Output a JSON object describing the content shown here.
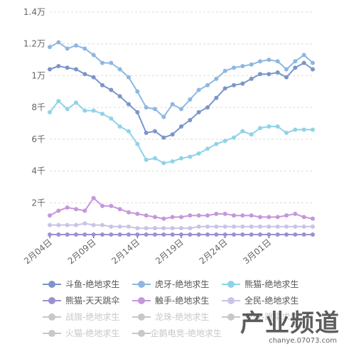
{
  "chart_data": {
    "type": "line",
    "y_tick_labels": [
      "1.4万",
      "1.2万",
      "1万",
      "8千",
      "6千",
      "4千",
      "2千"
    ],
    "y_tick_values": [
      14000,
      12000,
      10000,
      8000,
      6000,
      4000,
      2000
    ],
    "ylim": [
      0,
      14000
    ],
    "grid": true,
    "x_tick_labels": [
      "2月04日",
      "2月09日",
      "2月14日",
      "2月19日",
      "2月24日",
      "3月01日"
    ],
    "x_tick_index": [
      0,
      5,
      10,
      15,
      20,
      25
    ],
    "legend_position": "bottom",
    "series": [
      {
        "name": "斗鱼-绝地求生",
        "color": "#7b95c9",
        "visible": true,
        "values": [
          10400,
          10600,
          10500,
          10400,
          10100,
          9900,
          9400,
          9100,
          8700,
          8200,
          7700,
          6400,
          6500,
          6100,
          6300,
          6800,
          7200,
          7700,
          8000,
          8600,
          9200,
          9400,
          9500,
          9800,
          10100,
          10100,
          10200,
          9900,
          10500,
          10800,
          10400
        ]
      },
      {
        "name": "虎牙-绝地求生",
        "color": "#8db7e3",
        "visible": true,
        "values": [
          11800,
          12100,
          11700,
          11900,
          11700,
          11300,
          10800,
          10800,
          10400,
          9900,
          9000,
          8000,
          7900,
          7400,
          8200,
          7900,
          8500,
          9100,
          9400,
          9800,
          10300,
          10500,
          10600,
          10700,
          10900,
          11000,
          10900,
          10400,
          10900,
          11300,
          10800
        ]
      },
      {
        "name": "熊猫-绝地求生",
        "color": "#8fd3e8",
        "visible": true,
        "values": [
          7700,
          8400,
          7900,
          8300,
          7800,
          7800,
          7600,
          7300,
          6800,
          6500,
          5700,
          4700,
          4800,
          4500,
          4600,
          4800,
          4900,
          5100,
          5400,
          5700,
          5900,
          6100,
          6500,
          6300,
          6700,
          6800,
          6800,
          6400,
          6600,
          6600,
          6600
        ]
      },
      {
        "name": "熊猫-天天跳伞",
        "color": "#9c8fd3",
        "visible": true,
        "values": [
          0,
          0,
          0,
          0,
          0,
          0,
          0,
          0,
          0,
          0,
          0,
          0,
          0,
          0,
          0,
          0,
          0,
          0,
          0,
          0,
          0,
          0,
          0,
          0,
          0,
          0,
          0,
          0,
          0,
          0,
          0
        ]
      },
      {
        "name": "触手-绝地求生",
        "color": "#c597dc",
        "visible": true,
        "values": [
          1200,
          1500,
          1700,
          1600,
          1500,
          2300,
          1800,
          1800,
          1600,
          1400,
          1300,
          1200,
          1100,
          1000,
          1100,
          1100,
          1200,
          1200,
          1200,
          1300,
          1300,
          1200,
          1200,
          1200,
          1100,
          1100,
          1100,
          1200,
          1300,
          1100,
          1000
        ]
      },
      {
        "name": "全民-绝地求生",
        "color": "#c7c5e6",
        "visible": true,
        "values": [
          600,
          600,
          600,
          600,
          700,
          600,
          600,
          500,
          500,
          500,
          400,
          400,
          400,
          400,
          400,
          400,
          400,
          500,
          500,
          500,
          500,
          500,
          500,
          500,
          500,
          500,
          500,
          500,
          500,
          500,
          500
        ]
      },
      {
        "name": "战旗-绝地求生",
        "color": "#c8c8c8",
        "visible": false,
        "values": []
      },
      {
        "name": "龙珠-绝地求生",
        "color": "#c8c8c8",
        "visible": false,
        "values": []
      },
      {
        "name": "龙珠-跳伞求生",
        "color": "#c8c8c8",
        "visible": false,
        "values": []
      },
      {
        "name": "火猫-绝地求生",
        "color": "#c8c8c8",
        "visible": false,
        "values": []
      },
      {
        "name": "企鹅电竞-绝地求生",
        "color": "#c8c8c8",
        "visible": false,
        "values": []
      }
    ]
  },
  "legend": {
    "items": [
      {
        "label": "斗鱼-绝地求生",
        "color": "#7b95c9",
        "active": true
      },
      {
        "label": "虎牙-绝地求生",
        "color": "#8db7e3",
        "active": true
      },
      {
        "label": "熊猫-绝地求生",
        "color": "#8fd3e8",
        "active": true
      },
      {
        "label": "熊猫-天天跳伞",
        "color": "#9c8fd3",
        "active": true
      },
      {
        "label": "触手-绝地求生",
        "color": "#c597dc",
        "active": true
      },
      {
        "label": "全民-绝地求生",
        "color": "#c7c5e6",
        "active": true
      },
      {
        "label": "战旗-绝地求生",
        "color": "#c8c8c8",
        "active": false
      },
      {
        "label": "龙珠-绝地求生",
        "color": "#c8c8c8",
        "active": false
      },
      {
        "label": "龙珠-跳伞求生",
        "color": "#c8c8c8",
        "active": false
      },
      {
        "label": "火猫-绝地求生",
        "color": "#c8c8c8",
        "active": false
      },
      {
        "label": "企鹅电竞-绝地求生",
        "color": "#c8c8c8",
        "active": false
      }
    ]
  },
  "watermark": {
    "main": "产业频道",
    "sub": "chanye.07073.com"
  }
}
